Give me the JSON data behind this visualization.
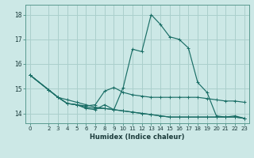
{
  "title": "",
  "xlabel": "Humidex (Indice chaleur)",
  "ylabel": "",
  "bg_color": "#cce8e6",
  "grid_color": "#aacfcc",
  "line_color": "#1a6e66",
  "xlim": [
    -0.5,
    23.5
  ],
  "ylim": [
    13.6,
    18.4
  ],
  "yticks": [
    14,
    15,
    16,
    17,
    18
  ],
  "xticks": [
    0,
    2,
    3,
    4,
    5,
    6,
    7,
    8,
    9,
    10,
    11,
    12,
    13,
    14,
    15,
    16,
    17,
    18,
    19,
    20,
    21,
    22,
    23
  ],
  "lines": [
    {
      "x": [
        0,
        2,
        3,
        4,
        5,
        6,
        7,
        8,
        9,
        10,
        11,
        12,
        13,
        14,
        15,
        16,
        17,
        18,
        19,
        20,
        21,
        22,
        23
      ],
      "y": [
        15.55,
        14.95,
        14.65,
        14.4,
        14.35,
        14.25,
        14.2,
        14.2,
        14.15,
        15.05,
        16.6,
        16.5,
        18.0,
        17.6,
        17.1,
        17.0,
        16.65,
        15.25,
        14.85,
        13.9,
        13.85,
        13.9,
        13.8
      ]
    },
    {
      "x": [
        0,
        2,
        3,
        4,
        5,
        6,
        7,
        8,
        9,
        10,
        11,
        12,
        13,
        14,
        15,
        16,
        17,
        18,
        19,
        20,
        21,
        22,
        23
      ],
      "y": [
        15.55,
        14.95,
        14.65,
        14.4,
        14.35,
        14.3,
        14.35,
        14.9,
        15.05,
        14.85,
        14.75,
        14.7,
        14.65,
        14.65,
        14.65,
        14.65,
        14.65,
        14.65,
        14.6,
        14.55,
        14.5,
        14.5,
        14.45
      ]
    },
    {
      "x": [
        0,
        2,
        3,
        4,
        5,
        6,
        7,
        8,
        9,
        10,
        11,
        12,
        13,
        14,
        15,
        16,
        17,
        18,
        19,
        20,
        21,
        22,
        23
      ],
      "y": [
        15.55,
        14.95,
        14.65,
        14.55,
        14.45,
        14.35,
        14.25,
        14.2,
        14.15,
        14.1,
        14.05,
        14.0,
        13.95,
        13.9,
        13.85,
        13.85,
        13.85,
        13.85,
        13.85,
        13.85,
        13.85,
        13.85,
        13.8
      ]
    },
    {
      "x": [
        0,
        2,
        3,
        4,
        5,
        6,
        7,
        8,
        9,
        10,
        11,
        12,
        13,
        14,
        15,
        16,
        17,
        18,
        19,
        20,
        21,
        22,
        23
      ],
      "y": [
        15.55,
        14.95,
        14.65,
        14.4,
        14.35,
        14.2,
        14.15,
        14.35,
        14.15,
        14.1,
        14.05,
        14.0,
        13.95,
        13.9,
        13.85,
        13.85,
        13.85,
        13.85,
        13.85,
        13.85,
        13.85,
        13.85,
        13.8
      ]
    }
  ]
}
